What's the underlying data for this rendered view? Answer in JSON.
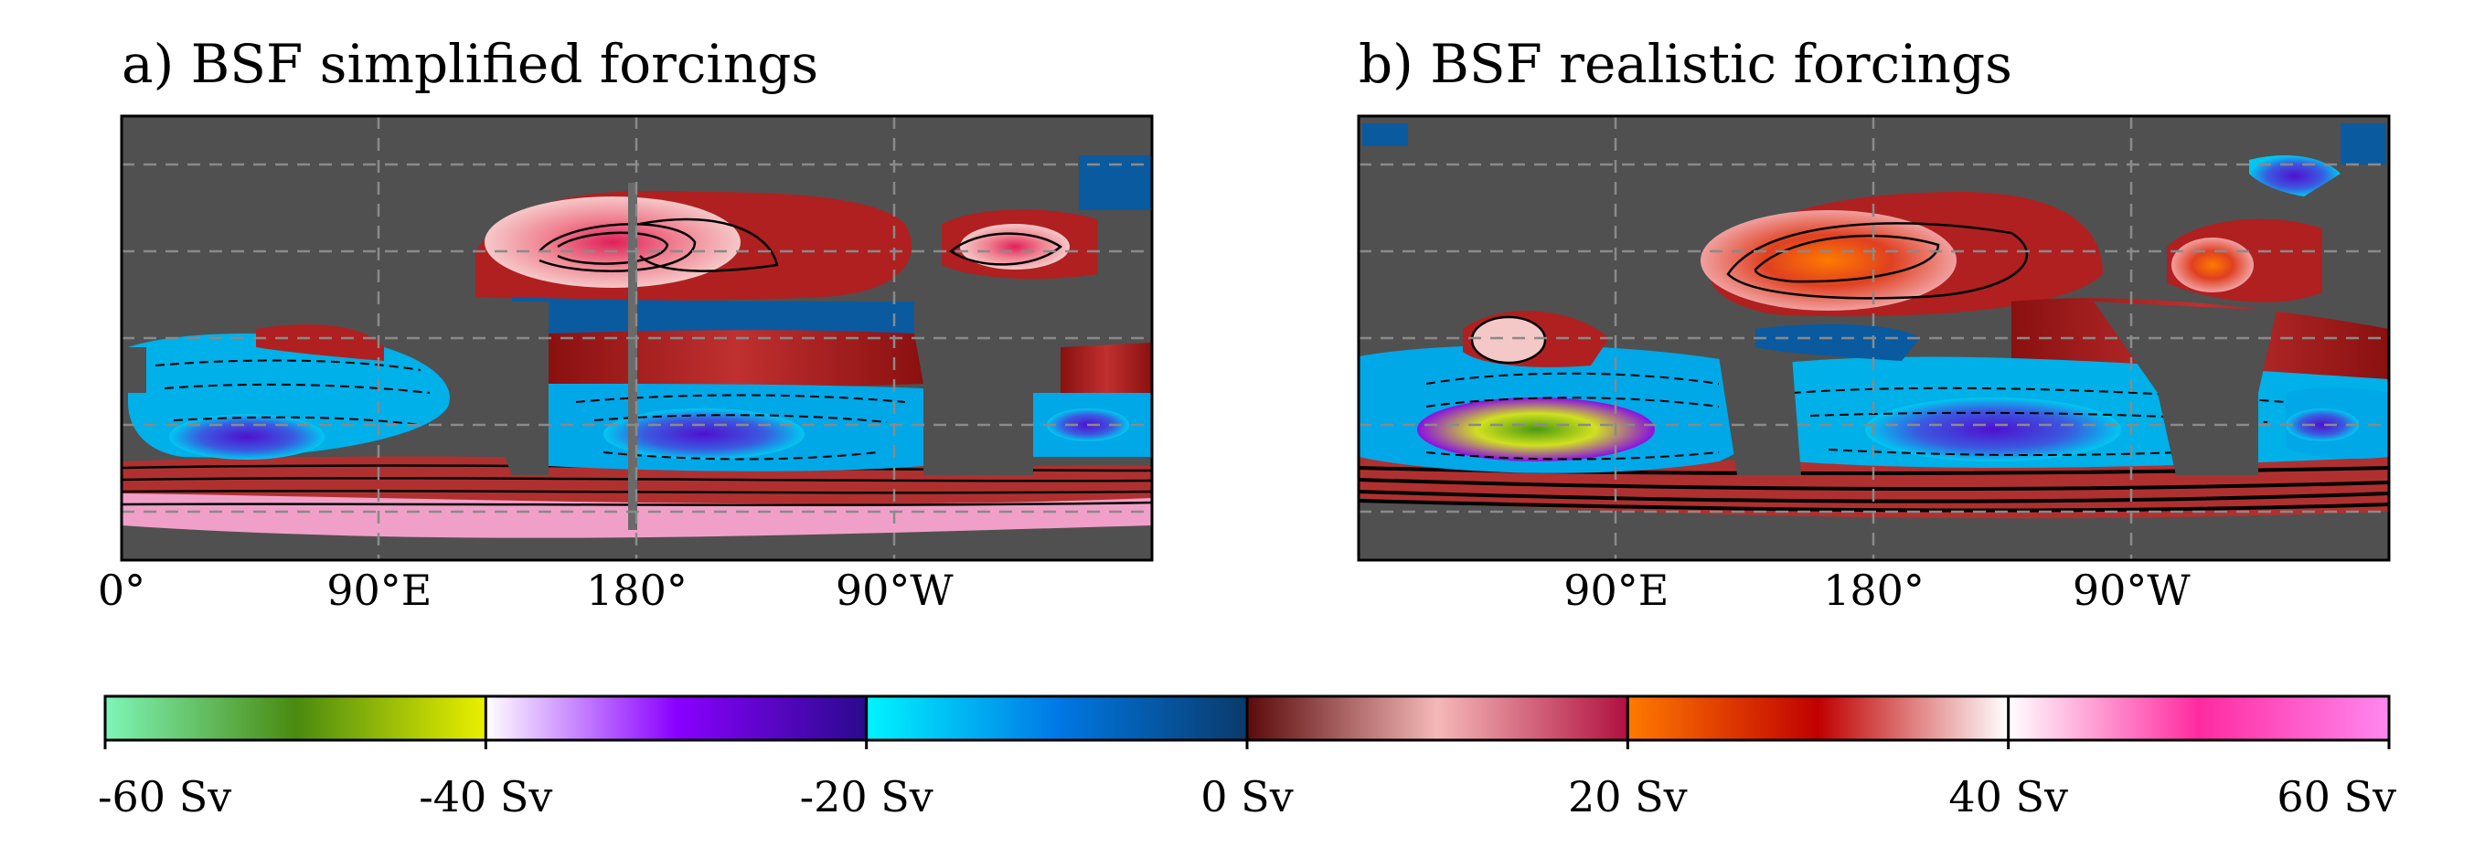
{
  "colors": {
    "land": "#505050",
    "grid": "#8a8a8a"
  },
  "chart_data": [
    {
      "type": "heatmap",
      "title": "a) BSF simplified forcings",
      "x_ticks": [
        "0°",
        "90°E",
        "180°",
        "90°W"
      ],
      "grid": true
    },
    {
      "type": "heatmap",
      "title": "b) BSF realistic forcings",
      "x_ticks": [
        "90°E",
        "180°",
        "90°W"
      ],
      "grid": true
    }
  ],
  "colorbar": {
    "unit": "Sv",
    "range": [
      -60,
      60
    ],
    "tick_values": [
      -60,
      -40,
      -20,
      0,
      20,
      40,
      60
    ],
    "tick_labels": [
      "-60 Sv",
      "-40 Sv",
      "-20 Sv",
      "0 Sv",
      "20 Sv",
      "40 Sv",
      "60 Sv"
    ],
    "segments": [
      {
        "from": -60,
        "to": -40,
        "colors": [
          "#7ef5b8",
          "#4a8a10",
          "#eaf000"
        ]
      },
      {
        "from": -40,
        "to": -20,
        "colors": [
          "#ffffff",
          "#8a00ff",
          "#2a0a8c"
        ]
      },
      {
        "from": -20,
        "to": 0,
        "colors": [
          "#00f5ff",
          "#0078e6",
          "#0a3a6a"
        ]
      },
      {
        "from": 0,
        "to": 20,
        "colors": [
          "#5a0a0a",
          "#f5b8b8",
          "#b01040"
        ]
      },
      {
        "from": 20,
        "to": 40,
        "colors": [
          "#ff7a00",
          "#c00000",
          "#ffffff"
        ]
      },
      {
        "from": 40,
        "to": 60,
        "colors": [
          "#ffffff",
          "#ff2aa0",
          "#ff88f0"
        ]
      }
    ]
  }
}
